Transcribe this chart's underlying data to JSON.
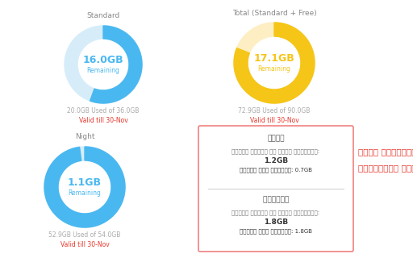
{
  "bg_color": "#ffffff",
  "title_standard": "Standard",
  "title_total": "Total (Standard + Free)",
  "title_night": "Night",
  "standard_total": 36.0,
  "standard_used": 20.0,
  "standard_used_label": "20.0GB Used of 36.0GB",
  "standard_valid": "Valid till 30-Nov",
  "standard_center_value": "16.0GB",
  "standard_center_label": "Remaining",
  "standard_color_used": "#4ab8f0",
  "standard_color_remaining": "#d6edf9",
  "total_total": 90.0,
  "total_used": 72.9,
  "total_used_label": "72.9GB Used of 90.0GB",
  "total_valid": "Valid till 30-Nov",
  "total_center_value": "17.1GB",
  "total_center_label": "Remaining",
  "total_color_used": "#f5c518",
  "total_color_remaining": "#fdefc3",
  "night_total": 54.0,
  "night_used": 52.9,
  "night_used_label": "52.9GB Used of 54.0GB",
  "night_valid": "Valid till 30-Nov",
  "night_center_value": "1.1GB",
  "night_center_label": "Remaining",
  "night_color_used": "#4ab8f0",
  "night_color_remaining": "#d6edf9",
  "box_title_day": "දිවා",
  "box_day_label1": "දිනකට හාවීම කල යුතු ප්‍රමාණය:",
  "box_day_value1": "1.2GB",
  "box_day_label2": "දිනකට ඇති හාවීමය: ",
  "box_day_value2": "0.7GB",
  "box_title_night": "රාත්‍රි",
  "box_night_label1": "දිනකට හාවීම කල යුතු ප්‍රමාණය:",
  "box_night_value1": "1.8GB",
  "box_night_label2": "දිනකට ඇති හාවීමය: ",
  "box_night_value2": "1.8GB",
  "side_text_line1": "මුස් පෝෂින්ත්රය",
  "side_text_line2": "හේ්රුවිට සික්යලේන්",
  "side_text_color": "#e8352a",
  "valid_color": "#e8352a",
  "used_label_color": "#aaaaaa",
  "title_color": "#888888",
  "value_color_blue": "#4ab8f0",
  "value_color_orange": "#f5c518"
}
